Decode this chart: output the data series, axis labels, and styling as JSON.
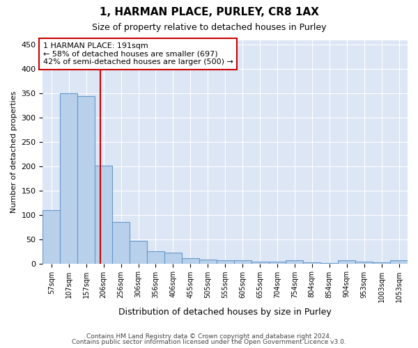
{
  "title_line1": "1, HARMAN PLACE, PURLEY, CR8 1AX",
  "title_line2": "Size of property relative to detached houses in Purley",
  "xlabel": "Distribution of detached houses by size in Purley",
  "ylabel": "Number of detached properties",
  "bar_labels": [
    "57sqm",
    "107sqm",
    "157sqm",
    "206sqm",
    "256sqm",
    "306sqm",
    "356sqm",
    "406sqm",
    "455sqm",
    "505sqm",
    "555sqm",
    "605sqm",
    "655sqm",
    "704sqm",
    "754sqm",
    "804sqm",
    "854sqm",
    "904sqm",
    "953sqm",
    "1003sqm",
    "1053sqm"
  ],
  "bar_heights": [
    110,
    350,
    345,
    202,
    85,
    47,
    25,
    22,
    11,
    8,
    6,
    7,
    4,
    3,
    6,
    2,
    1,
    7,
    3,
    2,
    7
  ],
  "bar_color": "#b8d0ea",
  "bar_edge_color": "#6699cc",
  "property_line_x": 2.82,
  "property_line_color": "#cc0000",
  "annotation_text": "1 HARMAN PLACE: 191sqm\n← 58% of detached houses are smaller (697)\n42% of semi-detached houses are larger (500) →",
  "annotation_box_color": "#ffffff",
  "annotation_box_edge": "#cc0000",
  "ylim": [
    0,
    460
  ],
  "yticks": [
    0,
    50,
    100,
    150,
    200,
    250,
    300,
    350,
    400,
    450
  ],
  "background_color": "#dce6f5",
  "grid_color": "#ffffff",
  "fig_background": "#ffffff",
  "footer_line1": "Contains HM Land Registry data © Crown copyright and database right 2024.",
  "footer_line2": "Contains public sector information licensed under the Open Government Licence v3.0."
}
